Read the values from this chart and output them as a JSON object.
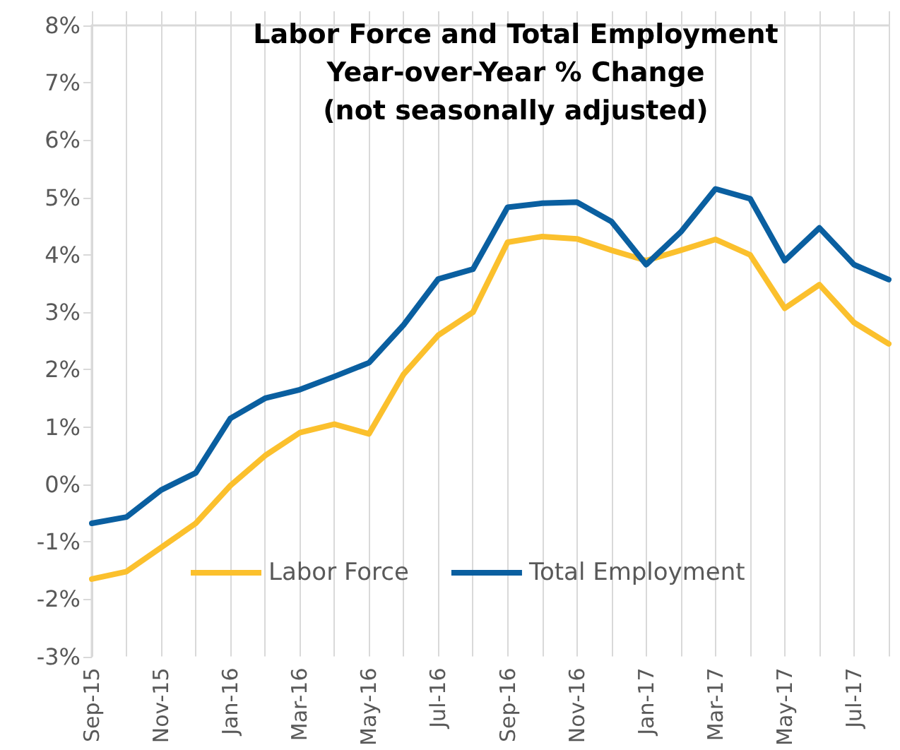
{
  "chart_data": {
    "type": "line",
    "title": "Labor Force and Total Employment\nYear-over-Year % Change\n(not seasonally adjusted)",
    "categories": [
      "Sep-15",
      null,
      "Nov-15",
      null,
      "Jan-16",
      null,
      "Mar-16",
      null,
      "May-16",
      null,
      "Jul-16",
      null,
      "Sep-16",
      null,
      "Nov-16",
      null,
      "Jan-17",
      null,
      "Mar-17",
      null,
      "May-17",
      null,
      "Jul-17",
      null
    ],
    "series": [
      {
        "name": "Labor Force",
        "color": "#fbc02d",
        "values": [
          -1.65,
          -1.52,
          -1.1,
          -0.68,
          -0.02,
          0.5,
          0.9,
          1.05,
          0.88,
          1.92,
          2.6,
          3.0,
          4.22,
          4.32,
          4.28,
          4.08,
          3.9,
          4.08,
          4.27,
          4.0,
          3.07,
          3.48,
          2.82,
          2.45
        ]
      },
      {
        "name": "Total Employment",
        "color": "#0a5fa0",
        "values": [
          -0.68,
          -0.57,
          -0.1,
          0.2,
          1.15,
          1.5,
          1.65,
          1.88,
          2.12,
          2.78,
          3.58,
          3.75,
          4.83,
          4.9,
          4.92,
          4.58,
          3.83,
          4.4,
          5.15,
          4.98,
          3.9,
          4.47,
          3.83,
          3.57
        ]
      }
    ],
    "ylim": [
      -3,
      8
    ],
    "yticks": [
      {
        "value": -3,
        "label": "-3%"
      },
      {
        "value": -2,
        "label": "-2%"
      },
      {
        "value": -1,
        "label": "-1%"
      },
      {
        "value": 0,
        "label": "0%"
      },
      {
        "value": 1,
        "label": "1%"
      },
      {
        "value": 2,
        "label": "2%"
      },
      {
        "value": 3,
        "label": "3%"
      },
      {
        "value": 4,
        "label": "4%"
      },
      {
        "value": 5,
        "label": "5%"
      },
      {
        "value": 6,
        "label": "6%"
      },
      {
        "value": 7,
        "label": "7%"
      },
      {
        "value": 8,
        "label": "8%"
      }
    ],
    "grid": "x",
    "legend": "bottom",
    "marker": "none",
    "line_style": "solid"
  }
}
